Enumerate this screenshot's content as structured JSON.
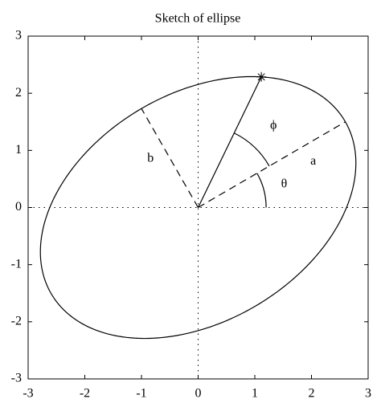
{
  "chart_data": {
    "type": "ellipse",
    "title": "Sketch of ellipse",
    "a": 3,
    "b": 2,
    "theta": 30,
    "phi": 34,
    "a_label": "a",
    "b_label": "b",
    "theta_label": "θ",
    "phi_label": "ϕ",
    "xlim": [
      -3,
      3
    ],
    "ylim": [
      -3,
      3
    ],
    "xticks": [
      -3,
      -2,
      -1,
      0,
      1,
      2,
      3
    ],
    "yticks": [
      -3,
      -2,
      -1,
      0,
      1,
      2,
      3
    ],
    "zero_lines": true,
    "color": "#000000"
  }
}
